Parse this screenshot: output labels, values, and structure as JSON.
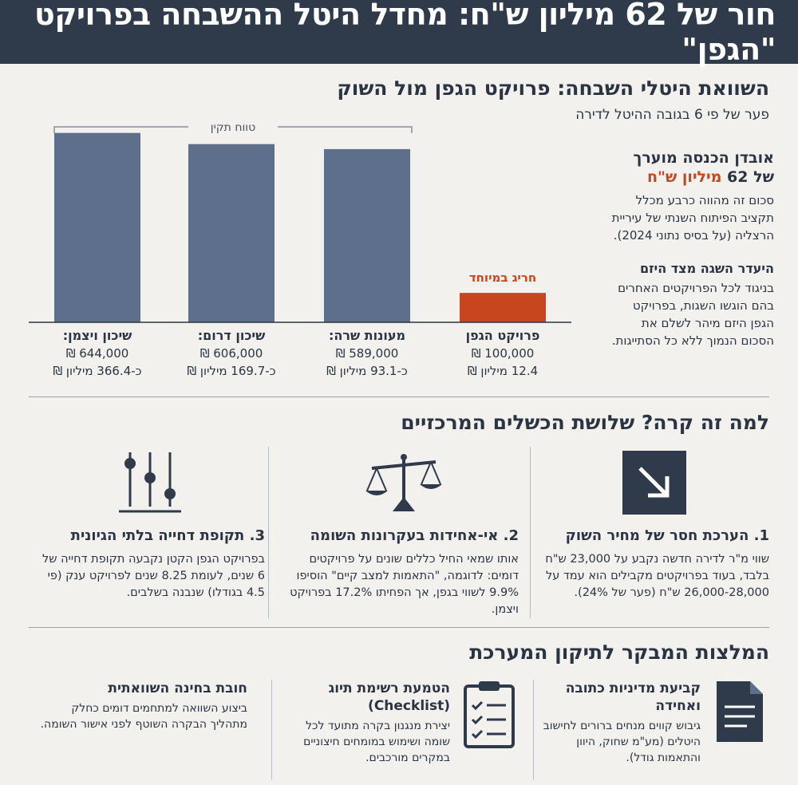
{
  "title": "חור של 62 מיליון ש\"ח: מחדל היטל ההשבחה בפרויקט \"הגפן\"",
  "comparison": {
    "heading": "השוואת היטלי השבחה: פרויקט הגפן מול השוק",
    "subheading": "פער של פי 6 בגובה ההיטל לדירה",
    "range_label": "טווח תקין",
    "outlier_label": "חריג במיוחד"
  },
  "chart_data": {
    "type": "bar",
    "categories": [
      "פרויקט הגפן",
      "מעונות שרה:",
      "שיכון דרום:",
      "שיכון ויצמן:"
    ],
    "values": [
      100000,
      589000,
      606000,
      644000
    ],
    "value_labels": [
      "100,000 ₪",
      "589,000 ₪",
      "606,000 ₪",
      "644,000 ₪"
    ],
    "totals": [
      "12.4 מיליון ₪",
      "כ-93.1 מיליון ₪",
      "כ-169.7 מיליון ₪",
      "כ-366.4 מיליון ₪"
    ],
    "title": "השוואת היטלי השבחה",
    "ylim": [
      0,
      700000
    ],
    "colors": [
      "#c8461e",
      "#5d6f8a",
      "#5d6f8a",
      "#5d6f8a"
    ]
  },
  "side": {
    "loss_title": "אובדן הכנסה מוערך",
    "loss_prefix": "של 62",
    "loss_amount": "מיליון ש\"ח",
    "loss_text": "סכום זה מהווה כרבע מכלל תקציב הפיתוח השנתי של עיריית הרצליה (על בסיס נתוני 2024).",
    "negotiation_title": "היעדר השגה מצד היזם",
    "negotiation_text": "בניגוד לכל הפרויקטים האחרים בהם הוגשו השגות, בפרויקט הגפן היזם מיהר לשלם את הסכום הנמוך ללא כל הסתייגות."
  },
  "failures": {
    "heading": "למה זה קרה? שלושת הכשלים המרכזיים",
    "items": [
      {
        "title": "1. הערכת חסר של מחיר השוק",
        "text": "שווי מ\"ר לדירה חדשה נקבע על 23,000 ש\"ח בלבד, בעוד בפרויקטים מקבילים הוא עמד על 26,000-28,000 ש\"ח (פער של 24%).",
        "icon": "arrow-down-icon"
      },
      {
        "title": "2. אי-אחידות בעקרונות השומה",
        "text": "אותו שמאי החיל כללים שונים על פרויקטים דומים: לדוגמה, \"התאמות למצב קיים\" הוסיפו 9.9% לשווי בגפן, אך הפחיתו 17.2% בפרויקט ויצמן.",
        "icon": "scales-icon"
      },
      {
        "title": "3. תקופת דחייה בלתי הגיונית",
        "text": "בפרויקט הגפן הקטן נקבעה תקופת דחייה של 6 שנים, לעומת 8.25 שנים לפרויקט ענק (פי 4.5 בגודלו) שנבנה בשלבים.",
        "icon": "sliders-icon"
      }
    ]
  },
  "recommendations": {
    "heading": "המלצות המבקר לתיקון המערכת",
    "items": [
      {
        "title": "קביעת מדיניות כתובה ואחידה",
        "text": "גיבוש קווים מנחים ברורים לחישוב היטלים (מע\"מ שחוק, היוון והתאמות גודל).",
        "icon": "document-icon"
      },
      {
        "title": "הטמעת רשימת תיוג (Checklist)",
        "text": "יצירת מנגנון בקרה מתועד לכל שומה ושימוש במומחים חיצוניים במקרים מורכבים.",
        "icon": "checklist-icon"
      },
      {
        "title": "חובת בחינה השוואתית",
        "text": "ביצוע השוואה למתחמים דומים כחלק מתהליך הבקרה השוטף לפני אישור השומה.",
        "icon": "none"
      }
    ]
  }
}
